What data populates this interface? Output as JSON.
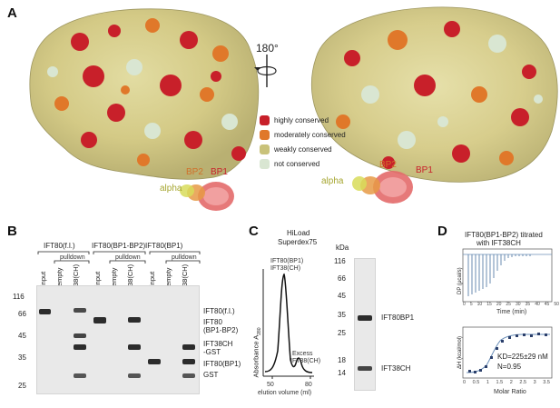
{
  "panels": {
    "a": "A",
    "b": "B",
    "c": "C",
    "d": "D"
  },
  "panelA": {
    "rotation": "180°",
    "legend": [
      {
        "label": "highly conserved",
        "color": "#c8202a"
      },
      {
        "label": "moderately conserved",
        "color": "#e0782a"
      },
      {
        "label": "weakly conserved",
        "color": "#c9c27a"
      },
      {
        "label": "not conserved",
        "color": "#d9e6d2"
      }
    ],
    "inset_labels": {
      "bp1": "BP1",
      "bp2": "BP2",
      "alpha": "alpha"
    }
  },
  "panelB": {
    "groups": [
      "IFT80(f.l.)",
      "IFT80(BP1-BP2)",
      "IFT80(BP1)"
    ],
    "pulldown": "pulldown",
    "lanes": [
      "input",
      "empty",
      "38(CH)",
      "input",
      "empty",
      "38(CH)",
      "input",
      "empty",
      "38(CH)"
    ],
    "markers": [
      "116",
      "66",
      "45",
      "35",
      "25"
    ],
    "band_labels": [
      "IFT80(f.l.)",
      "IFT80",
      "(BP1-BP2)",
      "IFT38CH",
      "-GST",
      "IFT80(BP1)",
      "GST"
    ]
  },
  "panelC": {
    "column_line1": "HiLoad",
    "column_line2": "Superdex75",
    "peak_label_1": "IFT80(BP1)",
    "peak_label_2": "IFT38(CH)",
    "excess_label_1": "Excess",
    "excess_label_2": "IFT38(CH)",
    "ylabel": "Absorbance A",
    "ylabel_sub": "280",
    "xticks": [
      "50",
      "80"
    ],
    "xlabel": "elution volume (ml)",
    "kda": "kDa",
    "markers": [
      "116",
      "66",
      "45",
      "35",
      "25",
      "18",
      "14"
    ],
    "band_labels": [
      "IFT80BP1",
      "IFT38CH"
    ]
  },
  "panelD": {
    "title_line1": "IFT80(BP1-BP2) titrated",
    "title_line2": "with IFT38CH",
    "top_ylabel": "DP (μcal/s)",
    "top_xlabel": "Time (min)",
    "top_xticks": [
      "0",
      "5",
      "10",
      "15",
      "20",
      "25",
      "30",
      "35",
      "40",
      "45",
      "50"
    ],
    "top_yticks": [
      "0",
      "-1",
      "-2",
      "-3",
      "-4"
    ],
    "bottom_ylabel": "ΔH (kcal/mol)",
    "bottom_xlabel": "Molar Ratio",
    "bottom_xticks": [
      "0",
      "0.5",
      "1",
      "1.5",
      "2",
      "2.5",
      "3",
      "3.5"
    ],
    "bottom_yticks": [
      "0",
      "-1",
      "-2",
      "-3",
      "-4",
      "-5"
    ],
    "kd": "KD=225±29 nM",
    "n": "N=0.95"
  }
}
